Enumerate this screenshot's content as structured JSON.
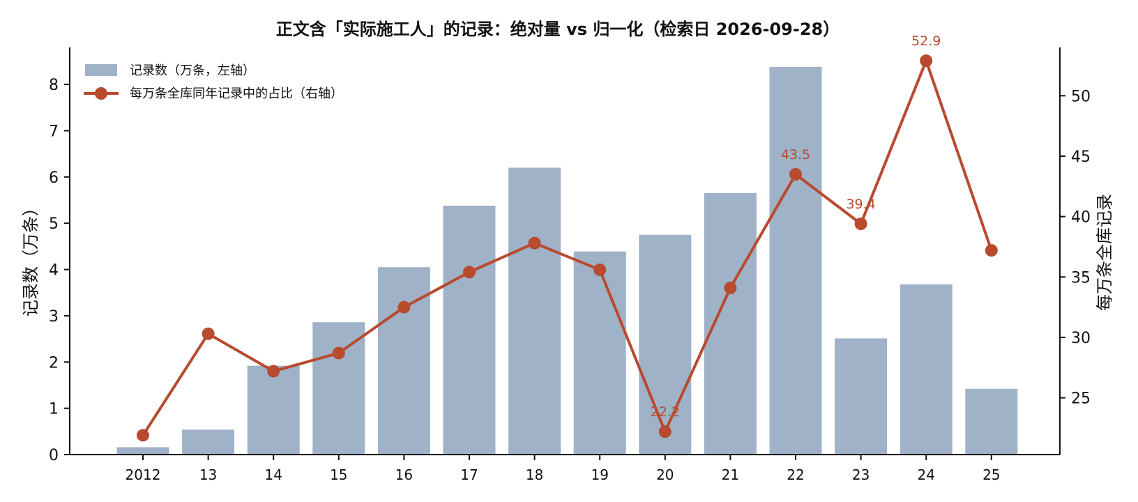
{
  "chart_data": {
    "type": "bar",
    "title": "正文含「实际施工人」的记录：绝对量 vs 归一化（检索日 2026-09-28）",
    "categories": [
      "2012",
      "13",
      "14",
      "15",
      "16",
      "17",
      "18",
      "19",
      "20",
      "21",
      "22",
      "23",
      "24",
      "25"
    ],
    "ylabel_left": "记录数（万条）",
    "ylabel_right": "每万条全库记录",
    "ylim_left": [
      0,
      8.8
    ],
    "ylim_right": [
      20.3,
      54
    ],
    "yticks_left": [
      "0",
      "1",
      "2",
      "3",
      "4",
      "5",
      "6",
      "7",
      "8"
    ],
    "yticks_right": [
      "25",
      "30",
      "35",
      "40",
      "45",
      "50"
    ],
    "series": [
      {
        "name": "记录数（万条，左轴）",
        "kind": "bar",
        "axis": "left",
        "color": "#9fb2c8",
        "values": [
          0.16,
          0.54,
          1.92,
          2.86,
          4.05,
          5.38,
          6.2,
          4.39,
          4.75,
          5.65,
          8.38,
          2.51,
          3.68,
          1.42
        ]
      },
      {
        "name": "每万条全库同年记录中的占比（右轴）",
        "kind": "line",
        "axis": "right",
        "color": "#b84a2e",
        "values": [
          21.9,
          30.3,
          27.2,
          28.7,
          32.5,
          35.4,
          37.8,
          35.6,
          22.2,
          34.1,
          43.5,
          39.4,
          52.9,
          37.2
        ]
      }
    ],
    "annotations": [
      {
        "category": "20",
        "text": "22.2"
      },
      {
        "category": "22",
        "text": "43.5"
      },
      {
        "category": "23",
        "text": "39.4"
      },
      {
        "category": "24",
        "text": "52.9"
      }
    ],
    "legend_position": "top-left",
    "grid": false
  }
}
